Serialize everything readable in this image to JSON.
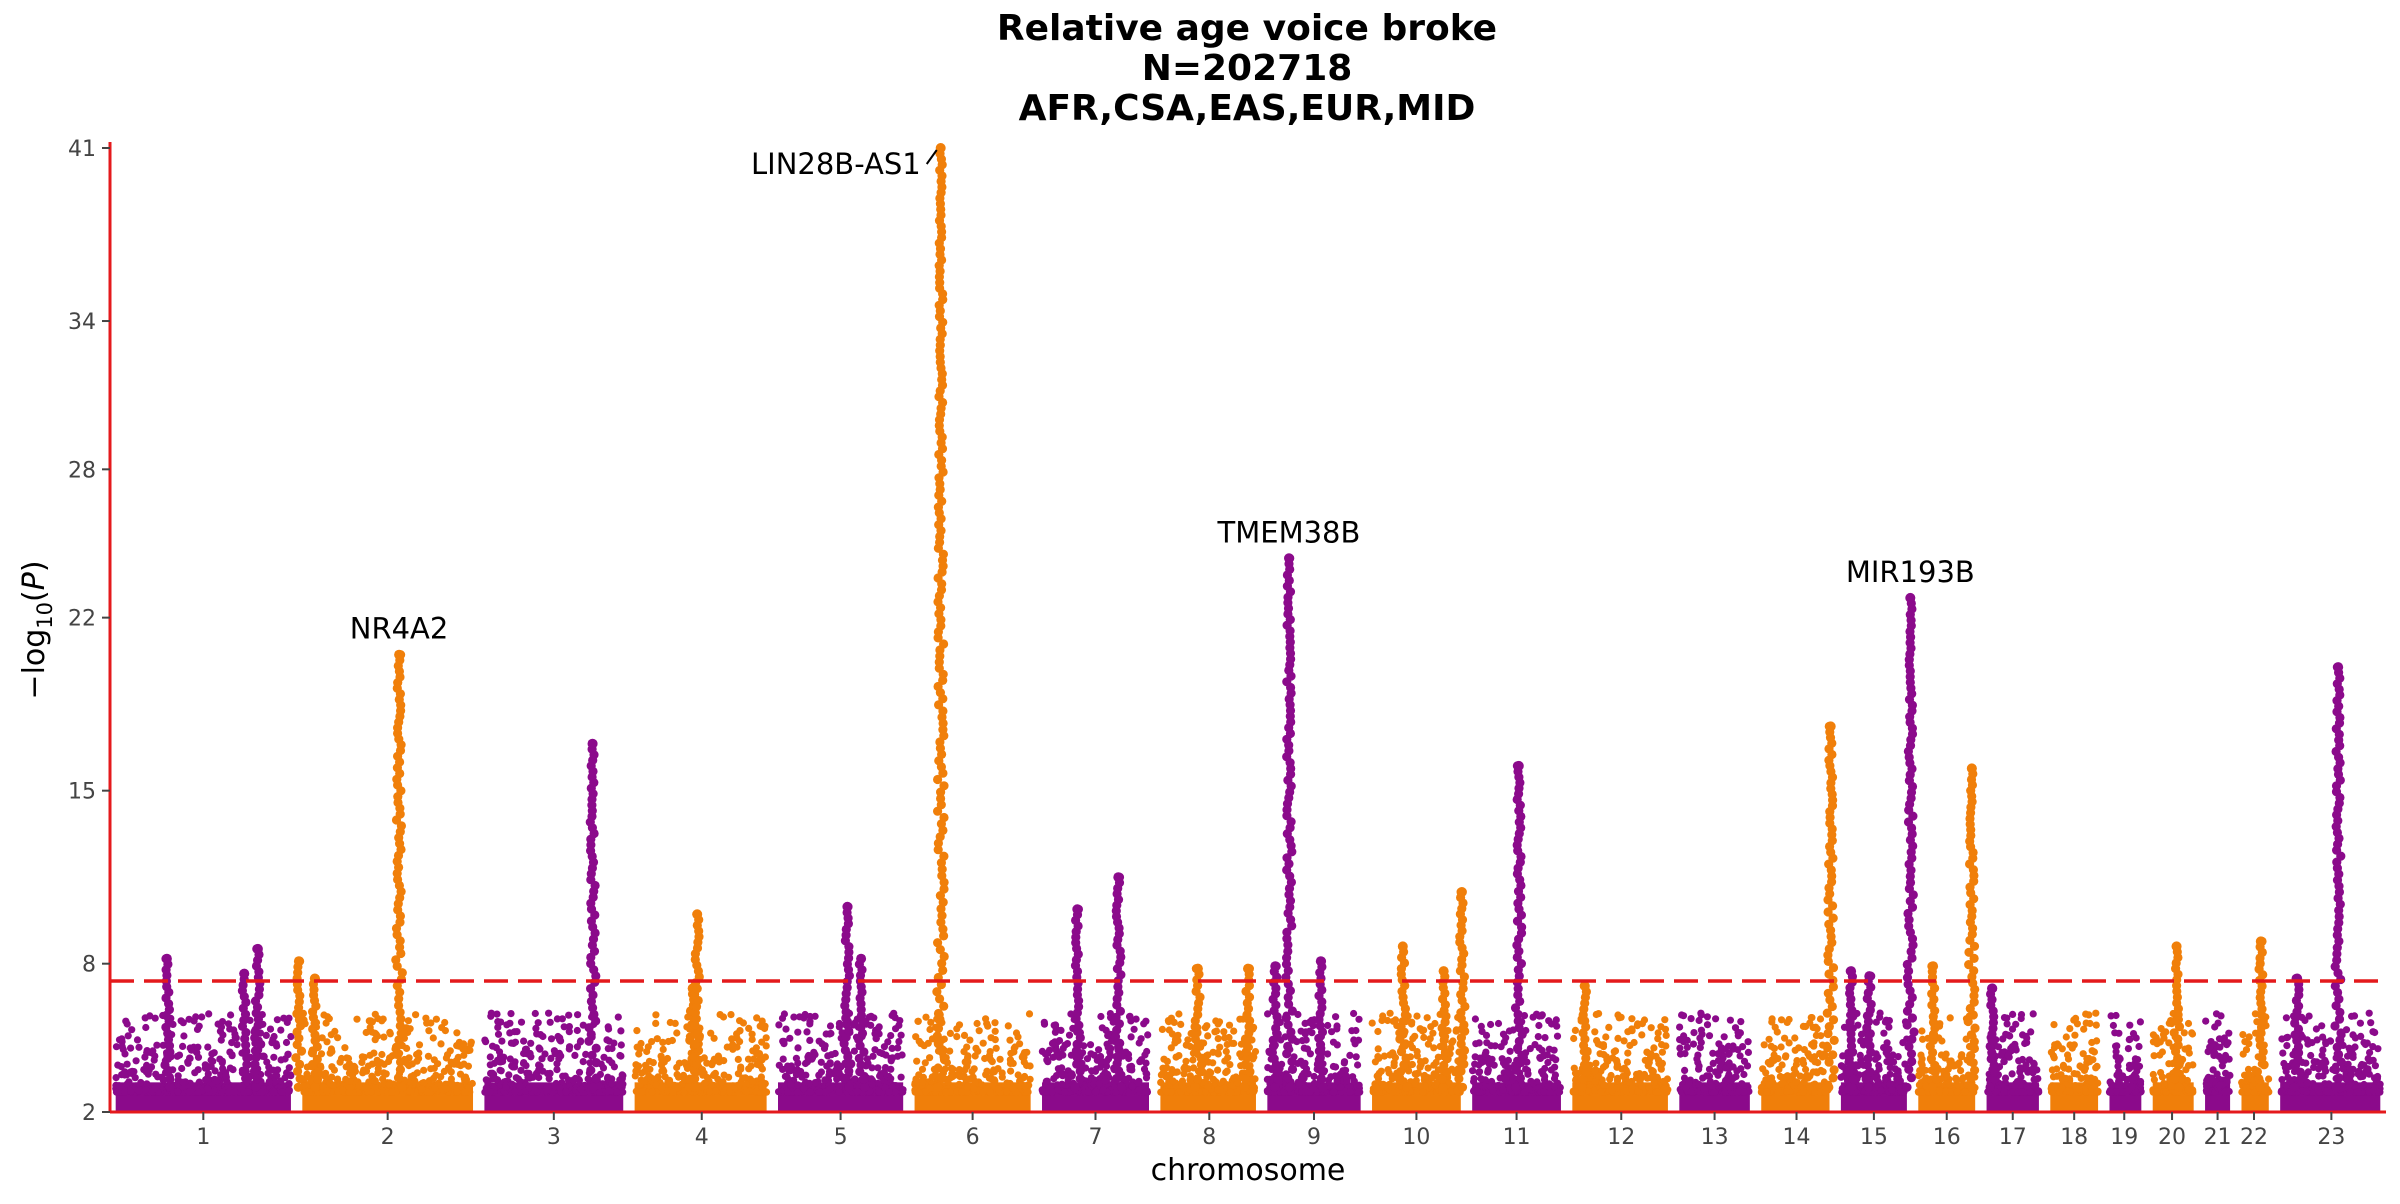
{
  "chart_data": {
    "type": "scatter",
    "subtype": "manhattan",
    "title_lines": [
      "Relative age voice broke",
      "N=202718",
      "AFR,CSA,EAS,EUR,MID"
    ],
    "xlabel": "chromosome",
    "ylabel": "-log10(P)",
    "ylim": [
      2,
      41
    ],
    "yticks": [
      2,
      8,
      15,
      22,
      28,
      34,
      41
    ],
    "significance_line": 7.3,
    "colors": {
      "odd": "#8b0a8b",
      "even": "#f07f0a",
      "axis": "#e41a1c",
      "threshold": "#e41a1c"
    },
    "chromosomes": [
      {
        "label": "1",
        "start": 0.0,
        "end": 8.2,
        "mid": 4.1
      },
      {
        "label": "2",
        "start": 8.2,
        "end": 16.2,
        "mid": 12.2
      },
      {
        "label": "3",
        "start": 16.2,
        "end": 22.8,
        "mid": 19.5
      },
      {
        "label": "4",
        "start": 22.8,
        "end": 29.1,
        "mid": 26.0
      },
      {
        "label": "5",
        "start": 29.1,
        "end": 35.1,
        "mid": 32.1
      },
      {
        "label": "6",
        "start": 35.1,
        "end": 40.7,
        "mid": 37.9
      },
      {
        "label": "7",
        "start": 40.7,
        "end": 45.9,
        "mid": 43.3
      },
      {
        "label": "8",
        "start": 45.9,
        "end": 50.6,
        "mid": 48.3
      },
      {
        "label": "9",
        "start": 50.6,
        "end": 55.2,
        "mid": 52.9
      },
      {
        "label": "10",
        "start": 55.2,
        "end": 59.6,
        "mid": 57.4
      },
      {
        "label": "11",
        "start": 59.6,
        "end": 64.0,
        "mid": 61.8
      },
      {
        "label": "12",
        "start": 64.0,
        "end": 68.7,
        "mid": 66.4
      },
      {
        "label": "13",
        "start": 68.7,
        "end": 72.3,
        "mid": 70.5
      },
      {
        "label": "14",
        "start": 72.3,
        "end": 75.8,
        "mid": 74.1
      },
      {
        "label": "15",
        "start": 75.8,
        "end": 79.2,
        "mid": 77.5
      },
      {
        "label": "16",
        "start": 79.2,
        "end": 82.2,
        "mid": 80.7
      },
      {
        "label": "17",
        "start": 82.2,
        "end": 85.0,
        "mid": 83.6
      },
      {
        "label": "18",
        "start": 85.0,
        "end": 87.6,
        "mid": 86.3
      },
      {
        "label": "19",
        "start": 87.6,
        "end": 89.5,
        "mid": 88.5
      },
      {
        "label": "20",
        "start": 89.5,
        "end": 91.8,
        "mid": 90.6
      },
      {
        "label": "21",
        "start": 91.8,
        "end": 93.4,
        "mid": 92.6
      },
      {
        "label": "22",
        "start": 93.4,
        "end": 95.1,
        "mid": 94.2
      },
      {
        "label": "23",
        "start": 95.1,
        "end": 100.0,
        "mid": 97.6
      }
    ],
    "peaks": [
      {
        "x": 2.5,
        "top": 8.2
      },
      {
        "x": 5.9,
        "top": 7.6
      },
      {
        "x": 6.5,
        "top": 8.6
      },
      {
        "x": 8.3,
        "top": 8.1
      },
      {
        "x": 9.0,
        "top": 7.4
      },
      {
        "x": 12.7,
        "top": 20.5
      },
      {
        "x": 21.2,
        "top": 16.9
      },
      {
        "x": 25.6,
        "top": 7.0
      },
      {
        "x": 25.8,
        "top": 10.0
      },
      {
        "x": 32.4,
        "top": 10.3
      },
      {
        "x": 33.0,
        "top": 8.2
      },
      {
        "x": 36.5,
        "top": 41.0
      },
      {
        "x": 42.5,
        "top": 10.2
      },
      {
        "x": 44.3,
        "top": 11.5
      },
      {
        "x": 47.8,
        "top": 7.8
      },
      {
        "x": 50.0,
        "top": 7.8
      },
      {
        "x": 51.2,
        "top": 7.9
      },
      {
        "x": 51.8,
        "top": 24.4
      },
      {
        "x": 53.2,
        "top": 8.1
      },
      {
        "x": 56.8,
        "top": 8.7
      },
      {
        "x": 58.6,
        "top": 7.7
      },
      {
        "x": 59.4,
        "top": 10.9
      },
      {
        "x": 61.9,
        "top": 16.0
      },
      {
        "x": 64.8,
        "top": 7.1
      },
      {
        "x": 75.6,
        "top": 17.6
      },
      {
        "x": 76.5,
        "top": 7.7
      },
      {
        "x": 77.3,
        "top": 7.5
      },
      {
        "x": 79.1,
        "top": 22.8
      },
      {
        "x": 80.1,
        "top": 7.9
      },
      {
        "x": 81.8,
        "top": 15.9
      },
      {
        "x": 82.7,
        "top": 7.0
      },
      {
        "x": 90.8,
        "top": 8.7
      },
      {
        "x": 94.5,
        "top": 8.9
      },
      {
        "x": 96.1,
        "top": 7.4
      },
      {
        "x": 97.9,
        "top": 20.0
      }
    ],
    "annotations": [
      {
        "text": "LIN28B-AS1",
        "x": 36.5,
        "y": 41.0
      },
      {
        "text": "TMEM38B",
        "x": 51.8,
        "y": 24.4
      },
      {
        "text": "MIR193B",
        "x": 79.1,
        "y": 22.8
      },
      {
        "text": "NR4A2",
        "x": 12.7,
        "y": 20.5
      }
    ]
  }
}
